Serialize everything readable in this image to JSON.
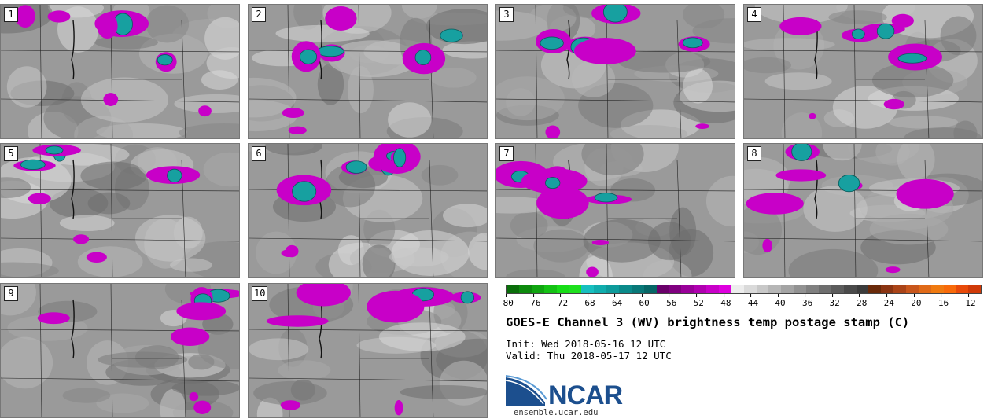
{
  "chart_data": {
    "type": "heatmap",
    "title": "GOES-E Channel 3 (WV) brightness temp postage stamp (C)",
    "init": "Init: Wed 2018-05-16 12 UTC",
    "valid": "Valid: Thu 2018-05-17 12 UTC",
    "units": "C",
    "colorbar": {
      "min": -80,
      "max": -10,
      "ticks": [
        -80,
        -76,
        -72,
        -68,
        -64,
        -60,
        -56,
        -52,
        -48,
        -44,
        -40,
        -36,
        -32,
        -28,
        -24,
        -20,
        -16,
        -12
      ],
      "colors": [
        "#0a6e0a",
        "#0d8a0d",
        "#10a510",
        "#14c214",
        "#17dd17",
        "#1ee01e",
        "#17bfbf",
        "#10adad",
        "#0d9b9b",
        "#0a8a8a",
        "#087878",
        "#066666",
        "#6a006a",
        "#800080",
        "#990099",
        "#b000b0",
        "#c800c8",
        "#df00df",
        "#ededed",
        "#dadada",
        "#c8c8c8",
        "#b6b6b6",
        "#a4a4a4",
        "#929292",
        "#808080",
        "#6e6e6e",
        "#5c5c5c",
        "#4a4a4a",
        "#3c3c3c",
        "#6a2a0a",
        "#8a3412",
        "#aa4418",
        "#c8561c",
        "#e06a18",
        "#f07a10",
        "#f86a0a",
        "#e84a0a",
        "#d03a08"
      ]
    },
    "members": [
      {
        "label": "1"
      },
      {
        "label": "2"
      },
      {
        "label": "3"
      },
      {
        "label": "4"
      },
      {
        "label": "5"
      },
      {
        "label": "6"
      },
      {
        "label": "7"
      },
      {
        "label": "8"
      },
      {
        "label": "9"
      },
      {
        "label": "10"
      }
    ]
  },
  "branding": {
    "logo_text": "NCAR",
    "site": "ensemble.ucar.edu",
    "logo_colors": {
      "blue": "#1c4f8e",
      "light": "#5b9bd5"
    }
  }
}
